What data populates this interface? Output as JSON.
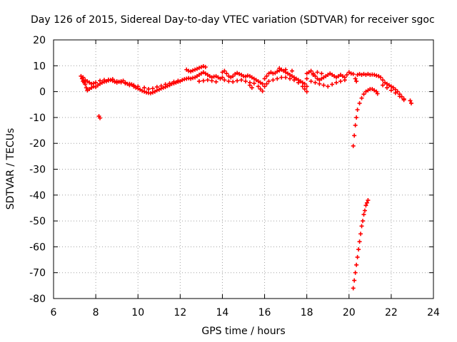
{
  "chart_data": {
    "type": "scatter",
    "title": "Day 126 of 2015, Sidereal Day-to-day VTEC variation (SDTVAR) for receiver sgoc",
    "xlabel": "GPS time / hours",
    "ylabel": "SDTVAR / TECUs",
    "xlim": [
      6,
      24
    ],
    "ylim": [
      -80,
      20
    ],
    "xticks": [
      6,
      8,
      10,
      12,
      14,
      16,
      18,
      20,
      22,
      24
    ],
    "yticks": [
      20,
      10,
      0,
      -10,
      -20,
      -30,
      -40,
      -50,
      -60,
      -70,
      -80
    ],
    "grid": true,
    "marker": "+",
    "series_color": "#ff0000",
    "series": [
      {
        "name": "SDTVAR",
        "points": [
          [
            7.3,
            6.0
          ],
          [
            7.35,
            5.0
          ],
          [
            7.4,
            4.0
          ],
          [
            7.45,
            3.5
          ],
          [
            7.5,
            2.8
          ],
          [
            7.55,
            1.5
          ],
          [
            7.6,
            0.5
          ],
          [
            7.7,
            1.0
          ],
          [
            7.8,
            1.5
          ],
          [
            7.9,
            2.0
          ],
          [
            8.0,
            1.8
          ],
          [
            8.1,
            2.5
          ],
          [
            8.2,
            3.0
          ],
          [
            8.3,
            3.5
          ],
          [
            8.4,
            3.8
          ],
          [
            8.5,
            4.0
          ],
          [
            8.6,
            4.3
          ],
          [
            8.7,
            4.5
          ],
          [
            8.8,
            4.2
          ],
          [
            8.9,
            3.8
          ],
          [
            9.0,
            3.5
          ],
          [
            9.1,
            3.8
          ],
          [
            9.2,
            4.0
          ],
          [
            9.3,
            4.2
          ],
          [
            9.4,
            3.5
          ],
          [
            9.5,
            3.0
          ],
          [
            9.6,
            2.5
          ],
          [
            9.7,
            2.8
          ],
          [
            9.8,
            2.0
          ],
          [
            9.9,
            1.5
          ],
          [
            10.0,
            1.2
          ],
          [
            7.4,
            5.5
          ],
          [
            7.5,
            4.5
          ],
          [
            7.6,
            4.0
          ],
          [
            7.7,
            3.5
          ],
          [
            7.8,
            3.0
          ],
          [
            7.9,
            3.2
          ],
          [
            8.0,
            3.5
          ],
          [
            8.2,
            4.2
          ],
          [
            8.4,
            4.5
          ],
          [
            8.6,
            4.6
          ],
          [
            8.8,
            4.8
          ],
          [
            9.0,
            4.0
          ],
          [
            9.2,
            3.6
          ],
          [
            9.4,
            3.2
          ],
          [
            9.6,
            3.0
          ],
          [
            9.8,
            2.5
          ],
          [
            10.0,
            2.0
          ],
          [
            8.15,
            -9.5
          ],
          [
            8.2,
            -10.2
          ],
          [
            10.1,
            0.8
          ],
          [
            10.2,
            0.3
          ],
          [
            10.3,
            0.0
          ],
          [
            10.4,
            -0.3
          ],
          [
            10.5,
            -0.5
          ],
          [
            10.6,
            -0.6
          ],
          [
            10.7,
            -0.3
          ],
          [
            10.8,
            0.0
          ],
          [
            10.9,
            0.5
          ],
          [
            11.0,
            0.8
          ],
          [
            11.1,
            1.2
          ],
          [
            11.2,
            1.5
          ],
          [
            11.3,
            1.8
          ],
          [
            11.4,
            2.2
          ],
          [
            11.5,
            2.5
          ],
          [
            11.6,
            3.0
          ],
          [
            11.7,
            3.2
          ],
          [
            11.8,
            3.5
          ],
          [
            11.9,
            3.8
          ],
          [
            12.0,
            4.0
          ],
          [
            10.3,
            1.5
          ],
          [
            10.5,
            1.0
          ],
          [
            10.7,
            1.2
          ],
          [
            10.9,
            1.8
          ],
          [
            11.1,
            2.2
          ],
          [
            11.3,
            2.8
          ],
          [
            11.5,
            3.2
          ],
          [
            11.7,
            3.8
          ],
          [
            11.9,
            4.2
          ],
          [
            12.1,
            4.5
          ],
          [
            12.2,
            4.8
          ],
          [
            12.3,
            5.0
          ],
          [
            12.4,
            5.2
          ],
          [
            12.5,
            5.0
          ],
          [
            12.6,
            5.3
          ],
          [
            12.7,
            5.5
          ],
          [
            12.8,
            6.0
          ],
          [
            12.9,
            6.5
          ],
          [
            13.0,
            7.0
          ],
          [
            13.1,
            7.5
          ],
          [
            13.2,
            7.0
          ],
          [
            13.3,
            6.5
          ],
          [
            13.4,
            6.0
          ],
          [
            13.5,
            5.5
          ],
          [
            13.6,
            5.8
          ],
          [
            13.7,
            6.0
          ],
          [
            13.8,
            5.5
          ],
          [
            13.9,
            5.0
          ],
          [
            14.0,
            5.5
          ],
          [
            12.3,
            8.5
          ],
          [
            12.4,
            8.0
          ],
          [
            12.5,
            7.8
          ],
          [
            12.6,
            8.2
          ],
          [
            12.7,
            8.5
          ],
          [
            12.8,
            8.8
          ],
          [
            12.9,
            9.2
          ],
          [
            13.0,
            9.5
          ],
          [
            13.1,
            9.8
          ],
          [
            13.2,
            9.5
          ],
          [
            12.9,
            4.0
          ],
          [
            13.1,
            4.2
          ],
          [
            13.3,
            4.5
          ],
          [
            13.5,
            4.2
          ],
          [
            13.7,
            3.8
          ],
          [
            14.0,
            7.5
          ],
          [
            14.1,
            8.0
          ],
          [
            14.2,
            7.0
          ],
          [
            14.3,
            6.0
          ],
          [
            14.4,
            5.5
          ],
          [
            14.5,
            6.0
          ],
          [
            14.6,
            6.8
          ],
          [
            14.7,
            7.2
          ],
          [
            14.8,
            6.8
          ],
          [
            14.9,
            6.5
          ],
          [
            15.0,
            6.0
          ],
          [
            15.1,
            5.8
          ],
          [
            15.2,
            6.2
          ],
          [
            15.3,
            6.0
          ],
          [
            15.4,
            5.5
          ],
          [
            15.5,
            5.0
          ],
          [
            15.6,
            4.5
          ],
          [
            15.7,
            4.0
          ],
          [
            15.8,
            3.5
          ],
          [
            15.9,
            3.0
          ],
          [
            16.0,
            2.0
          ],
          [
            14.1,
            4.5
          ],
          [
            14.3,
            4.0
          ],
          [
            14.5,
            3.8
          ],
          [
            14.7,
            4.2
          ],
          [
            14.9,
            4.5
          ],
          [
            15.1,
            4.0
          ],
          [
            15.3,
            3.5
          ],
          [
            15.5,
            3.2
          ],
          [
            15.7,
            2.0
          ],
          [
            15.8,
            1.0
          ],
          [
            15.9,
            0.2
          ],
          [
            15.3,
            2.5
          ],
          [
            15.4,
            1.5
          ],
          [
            16.0,
            5.0
          ],
          [
            16.1,
            6.0
          ],
          [
            16.2,
            7.0
          ],
          [
            16.3,
            7.5
          ],
          [
            16.4,
            7.0
          ],
          [
            16.5,
            7.2
          ],
          [
            16.6,
            7.8
          ],
          [
            16.7,
            8.2
          ],
          [
            16.8,
            8.5
          ],
          [
            16.9,
            8.0
          ],
          [
            17.0,
            7.5
          ],
          [
            17.1,
            7.0
          ],
          [
            17.2,
            6.5
          ],
          [
            17.3,
            6.0
          ],
          [
            17.4,
            5.5
          ],
          [
            17.5,
            5.0
          ],
          [
            17.6,
            4.5
          ],
          [
            17.7,
            4.0
          ],
          [
            17.8,
            3.5
          ],
          [
            17.9,
            3.0
          ],
          [
            18.0,
            2.0
          ],
          [
            16.1,
            3.0
          ],
          [
            16.2,
            4.0
          ],
          [
            16.4,
            4.5
          ],
          [
            16.6,
            5.0
          ],
          [
            16.8,
            5.5
          ],
          [
            17.0,
            5.5
          ],
          [
            17.2,
            5.0
          ],
          [
            17.4,
            4.5
          ],
          [
            17.6,
            3.5
          ],
          [
            17.8,
            2.0
          ],
          [
            17.9,
            1.0
          ],
          [
            18.0,
            0.0
          ],
          [
            16.7,
            9.0
          ],
          [
            17.0,
            8.5
          ],
          [
            17.3,
            8.0
          ],
          [
            18.0,
            7.0
          ],
          [
            18.1,
            7.5
          ],
          [
            18.2,
            8.0
          ],
          [
            18.3,
            7.0
          ],
          [
            18.4,
            6.0
          ],
          [
            18.5,
            5.0
          ],
          [
            18.6,
            4.5
          ],
          [
            18.7,
            5.0
          ],
          [
            18.8,
            5.5
          ],
          [
            18.9,
            6.0
          ],
          [
            19.0,
            6.5
          ],
          [
            19.1,
            7.0
          ],
          [
            19.2,
            6.5
          ],
          [
            19.3,
            6.0
          ],
          [
            19.4,
            5.5
          ],
          [
            19.5,
            6.0
          ],
          [
            19.6,
            6.5
          ],
          [
            19.7,
            6.0
          ],
          [
            19.8,
            5.5
          ],
          [
            19.9,
            6.5
          ],
          [
            20.0,
            7.5
          ],
          [
            20.1,
            7.0
          ],
          [
            20.2,
            6.8
          ],
          [
            18.0,
            5.0
          ],
          [
            18.2,
            4.0
          ],
          [
            18.4,
            3.5
          ],
          [
            18.6,
            3.0
          ],
          [
            18.8,
            2.5
          ],
          [
            19.0,
            2.0
          ],
          [
            19.2,
            2.8
          ],
          [
            19.4,
            3.5
          ],
          [
            19.6,
            4.0
          ],
          [
            19.8,
            4.5
          ],
          [
            18.3,
            6.5
          ],
          [
            18.5,
            7.5
          ],
          [
            18.7,
            7.0
          ],
          [
            20.4,
            6.5
          ],
          [
            20.5,
            6.8
          ],
          [
            20.6,
            6.5
          ],
          [
            20.7,
            6.8
          ],
          [
            20.8,
            6.5
          ],
          [
            20.9,
            6.8
          ],
          [
            21.0,
            6.5
          ],
          [
            21.1,
            6.6
          ],
          [
            21.2,
            6.5
          ],
          [
            21.3,
            6.2
          ],
          [
            21.4,
            6.0
          ],
          [
            21.5,
            5.5
          ],
          [
            21.6,
            4.5
          ],
          [
            21.7,
            3.5
          ],
          [
            21.8,
            3.0
          ],
          [
            21.9,
            2.5
          ],
          [
            22.0,
            2.0
          ],
          [
            22.1,
            1.5
          ],
          [
            22.2,
            0.8
          ],
          [
            22.3,
            0.0
          ],
          [
            22.4,
            -1.0
          ],
          [
            22.5,
            -2.0
          ],
          [
            22.6,
            -2.8
          ],
          [
            20.3,
            5.0
          ],
          [
            20.35,
            4.0
          ],
          [
            21.6,
            2.5
          ],
          [
            21.8,
            1.5
          ],
          [
            22.0,
            0.5
          ],
          [
            22.2,
            -0.5
          ],
          [
            22.4,
            -1.8
          ],
          [
            22.6,
            -3.2
          ],
          [
            22.9,
            -3.5
          ],
          [
            22.95,
            -4.5
          ],
          [
            20.2,
            -21.0
          ],
          [
            20.25,
            -17.0
          ],
          [
            20.3,
            -13.0
          ],
          [
            20.35,
            -10.0
          ],
          [
            20.4,
            -7.0
          ],
          [
            20.5,
            -4.5
          ],
          [
            20.6,
            -2.5
          ],
          [
            20.7,
            -1.0
          ],
          [
            20.8,
            0.0
          ],
          [
            20.9,
            0.5
          ],
          [
            21.0,
            1.0
          ],
          [
            21.1,
            1.0
          ],
          [
            21.2,
            0.5
          ],
          [
            21.3,
            0.0
          ],
          [
            21.35,
            -0.8
          ],
          [
            20.2,
            -76.0
          ],
          [
            20.25,
            -73.0
          ],
          [
            20.3,
            -70.0
          ],
          [
            20.35,
            -67.0
          ],
          [
            20.4,
            -64.0
          ],
          [
            20.45,
            -61.0
          ],
          [
            20.5,
            -58.0
          ],
          [
            20.55,
            -55.0
          ],
          [
            20.6,
            -52.0
          ],
          [
            20.65,
            -50.0
          ],
          [
            20.7,
            -47.5
          ],
          [
            20.75,
            -46.0
          ],
          [
            20.8,
            -44.0
          ],
          [
            20.85,
            -43.0
          ],
          [
            20.9,
            -42.0
          ]
        ]
      }
    ]
  }
}
